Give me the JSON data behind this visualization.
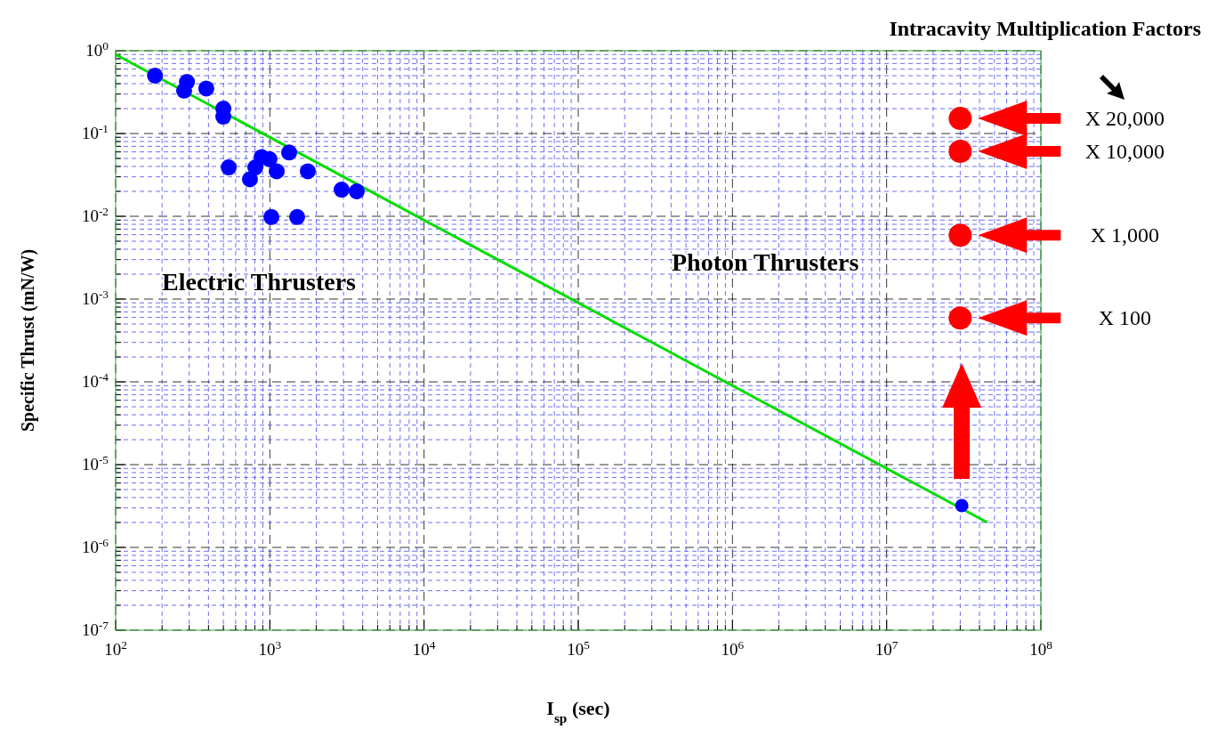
{
  "chart_data": {
    "type": "scatter",
    "title": "Intracavity Multiplication Factors",
    "xlabel": "I$_{sp}$ (sec)",
    "ylabel": "Specific Thrust (mN/W)",
    "log": "xy",
    "grid": true,
    "marker": "circle",
    "xlim": [
      100,
      100000000
    ],
    "xticks": [
      {
        "value": 100,
        "label": "10$^{2}$"
      },
      {
        "value": 200,
        "label": null
      },
      {
        "value": 300,
        "label": null
      },
      {
        "value": 400,
        "label": null
      },
      {
        "value": 500,
        "label": null
      },
      {
        "value": 600,
        "label": null
      },
      {
        "value": 700,
        "label": null
      },
      {
        "value": 800,
        "label": null
      },
      {
        "value": 900,
        "label": null
      },
      {
        "value": 1000,
        "label": "10$^{3}$"
      },
      {
        "value": 2000,
        "label": null
      },
      {
        "value": 3000,
        "label": null
      },
      {
        "value": 4000,
        "label": null
      },
      {
        "value": 5000,
        "label": null
      },
      {
        "value": 6000,
        "label": null
      },
      {
        "value": 7000,
        "label": null
      },
      {
        "value": 8000,
        "label": null
      },
      {
        "value": 9000,
        "label": null
      },
      {
        "value": 10000,
        "label": "10$^{4}$"
      },
      {
        "value": 20000,
        "label": null
      },
      {
        "value": 30000,
        "label": null
      },
      {
        "value": 40000,
        "label": null
      },
      {
        "value": 50000,
        "label": null
      },
      {
        "value": 60000,
        "label": null
      },
      {
        "value": 70000,
        "label": null
      },
      {
        "value": 80000,
        "label": null
      },
      {
        "value": 90000,
        "label": null
      },
      {
        "value": 100000,
        "label": "10$^{5}$"
      },
      {
        "value": 200000,
        "label": null
      },
      {
        "value": 300000,
        "label": null
      },
      {
        "value": 400000,
        "label": null
      },
      {
        "value": 500000,
        "label": null
      },
      {
        "value": 600000,
        "label": null
      },
      {
        "value": 700000,
        "label": null
      },
      {
        "value": 800000,
        "label": null
      },
      {
        "value": 900000,
        "label": null
      },
      {
        "value": 1000000,
        "label": "10$^{6}$"
      },
      {
        "value": 2000000,
        "label": null
      },
      {
        "value": 3000000,
        "label": null
      },
      {
        "value": 4000000,
        "label": null
      },
      {
        "value": 5000000,
        "label": null
      },
      {
        "value": 6000000,
        "label": null
      },
      {
        "value": 7000000,
        "label": null
      },
      {
        "value": 8000000,
        "label": null
      },
      {
        "value": 9000000,
        "label": null
      },
      {
        "value": 10000000,
        "label": "10$^{7}$"
      },
      {
        "value": 20000000,
        "label": null
      },
      {
        "value": 30000000,
        "label": null
      },
      {
        "value": 40000000,
        "label": null
      },
      {
        "value": 50000000,
        "label": null
      },
      {
        "value": 60000000,
        "label": null
      },
      {
        "value": 70000000,
        "label": null
      },
      {
        "value": 80000000,
        "label": null
      },
      {
        "value": 90000000,
        "label": null
      },
      {
        "value": 100000000,
        "label": "10$^{8}$"
      }
    ],
    "ylim": [
      1e-07,
      1
    ],
    "yticks": [
      {
        "value": 1e-07,
        "label": "10$^{-7}$"
      },
      {
        "value": 2e-07,
        "label": null
      },
      {
        "value": 3e-07,
        "label": null
      },
      {
        "value": 4e-07,
        "label": null
      },
      {
        "value": 5e-07,
        "label": null
      },
      {
        "value": 6e-07,
        "label": null
      },
      {
        "value": 7e-07,
        "label": null
      },
      {
        "value": 8e-07,
        "label": null
      },
      {
        "value": 9e-07,
        "label": null
      },
      {
        "value": 1e-06,
        "label": "10$^{-6}$"
      },
      {
        "value": 2e-06,
        "label": null
      },
      {
        "value": 3e-06,
        "label": null
      },
      {
        "value": 4e-06,
        "label": null
      },
      {
        "value": 5e-06,
        "label": null
      },
      {
        "value": 6e-06,
        "label": null
      },
      {
        "value": 7e-06,
        "label": null
      },
      {
        "value": 8e-06,
        "label": null
      },
      {
        "value": 9e-06,
        "label": null
      },
      {
        "value": 1e-05,
        "label": "10$^{-5}$"
      },
      {
        "value": 2e-05,
        "label": null
      },
      {
        "value": 3e-05,
        "label": null
      },
      {
        "value": 4e-05,
        "label": null
      },
      {
        "value": 5e-05,
        "label": null
      },
      {
        "value": 6e-05,
        "label": null
      },
      {
        "value": 7e-05,
        "label": null
      },
      {
        "value": 8e-05,
        "label": null
      },
      {
        "value": 9e-05,
        "label": null
      },
      {
        "value": 0.0001,
        "label": "10$^{-4}$"
      },
      {
        "value": 0.0002,
        "label": null
      },
      {
        "value": 0.0003,
        "label": null
      },
      {
        "value": 0.0004,
        "label": null
      },
      {
        "value": 0.0005,
        "label": null
      },
      {
        "value": 0.0006,
        "label": null
      },
      {
        "value": 0.0007,
        "label": null
      },
      {
        "value": 0.0008,
        "label": null
      },
      {
        "value": 0.0009,
        "label": null
      },
      {
        "value": 0.001,
        "label": "10$^{-3}$"
      },
      {
        "value": 0.002,
        "label": null
      },
      {
        "value": 0.003,
        "label": null
      },
      {
        "value": 0.004,
        "label": null
      },
      {
        "value": 0.005,
        "label": null
      },
      {
        "value": 0.006,
        "label": null
      },
      {
        "value": 0.007,
        "label": null
      },
      {
        "value": 0.008,
        "label": null
      },
      {
        "value": 0.009,
        "label": null
      },
      {
        "value": 0.01,
        "label": "10$^{-2}$"
      },
      {
        "value": 0.02,
        "label": null
      },
      {
        "value": 0.03,
        "label": null
      },
      {
        "value": 0.04,
        "label": null
      },
      {
        "value": 0.05,
        "label": null
      },
      {
        "value": 0.06,
        "label": null
      },
      {
        "value": 0.07,
        "label": null
      },
      {
        "value": 0.08,
        "label": null
      },
      {
        "value": 0.09,
        "label": null
      },
      {
        "value": 0.1,
        "label": "10$^{-1}$"
      },
      {
        "value": 0.2,
        "label": null
      },
      {
        "value": 0.3,
        "label": null
      },
      {
        "value": 0.4,
        "label": null
      },
      {
        "value": 0.5,
        "label": null
      },
      {
        "value": 0.6,
        "label": null
      },
      {
        "value": 0.7,
        "label": null
      },
      {
        "value": 0.8,
        "label": null
      },
      {
        "value": 0.9,
        "label": null
      },
      {
        "value": 1,
        "label": "10$^{0}$"
      }
    ],
    "series": [
      {
        "type": "line",
        "color": "#00dd00",
        "marker": "none",
        "x": [
          100,
          45000000
        ],
        "values": [
          0.9,
          2e-06
        ]
      },
      {
        "color": "#0000ff",
        "x": [
          180,
          290,
          278,
          387,
          499,
          499,
          541,
          743,
          805,
          884,
          995,
          1108,
          1334,
          1763,
          2920,
          3660,
          1023,
          1503,
          30700000
        ],
        "values": [
          0.5,
          0.42,
          0.33,
          0.35,
          0.2,
          0.16,
          0.039,
          0.028,
          0.039,
          0.052,
          0.049,
          0.035,
          0.059,
          0.035,
          0.021,
          0.02,
          0.0098,
          0.0098,
          3.2e-06
        ]
      },
      {
        "color": "#ff0000",
        "x": [
          30000000,
          30000000,
          30000000,
          30000000
        ],
        "values": [
          0.152,
          0.061,
          0.0059,
          0.00059
        ]
      }
    ],
    "annotations": [
      "Electric Thrusters",
      "Photon Thrusters",
      "X 20,000",
      "X 10,000",
      "X 1,000",
      "X 100"
    ]
  }
}
